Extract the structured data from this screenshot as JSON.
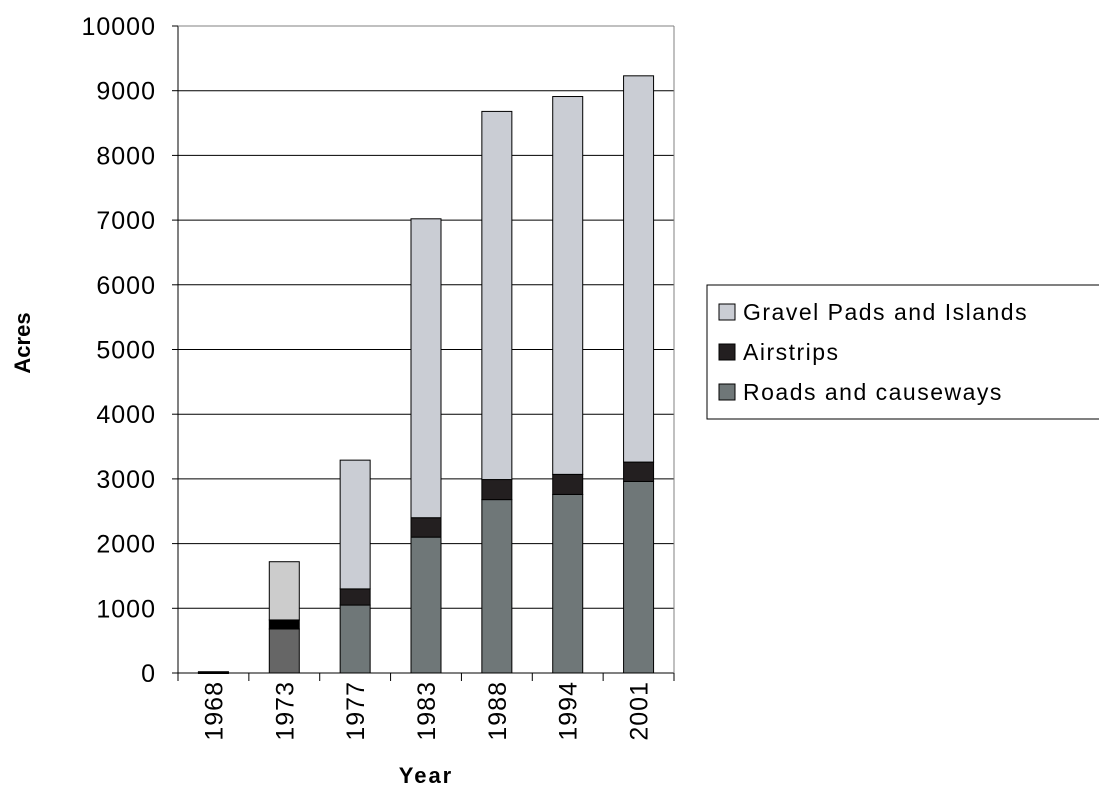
{
  "chart_data": {
    "type": "bar",
    "stacked": true,
    "title": "",
    "xlabel": "Year",
    "ylabel": "Acres",
    "ylim": [
      0,
      10000
    ],
    "yticks": [
      0,
      1000,
      2000,
      3000,
      4000,
      5000,
      6000,
      7000,
      8000,
      9000,
      10000
    ],
    "ytick_labels": [
      "0",
      "1000",
      "2000",
      "3000",
      "4000",
      "5000",
      "6000",
      "7000",
      "8000",
      "9000",
      "10000"
    ],
    "grid": true,
    "legend_position": "right",
    "categories": [
      "1968",
      "1973",
      "1977",
      "1983",
      "1988",
      "1994",
      "2001"
    ],
    "series": [
      {
        "name": "Roads and causeways",
        "color": "#6f7778",
        "values": [
          0,
          680,
          1050,
          2100,
          2680,
          2760,
          2960
        ],
        "overrides": {
          "1": "#666666"
        }
      },
      {
        "name": "Airstrips",
        "color": "#231f20",
        "values": [
          10,
          140,
          250,
          300,
          310,
          310,
          300
        ],
        "overrides": {
          "1": "#000000"
        }
      },
      {
        "name": "Gravel Pads and Islands",
        "color": "#cacdd4",
        "values": [
          10,
          900,
          1990,
          4620,
          5690,
          5840,
          5970
        ],
        "overrides": {
          "1": "#cccccc"
        }
      }
    ]
  }
}
